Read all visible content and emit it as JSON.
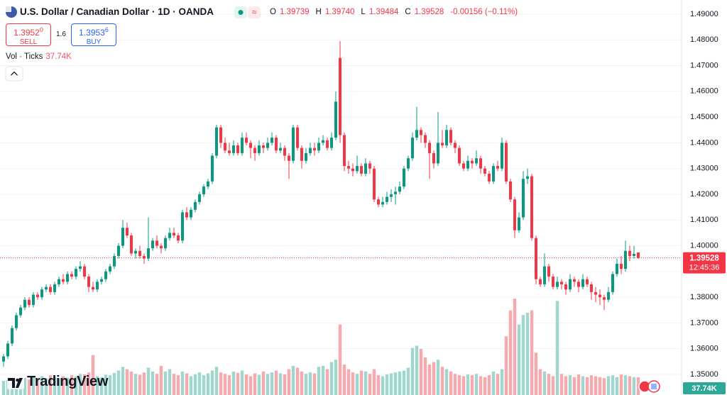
{
  "chart_data": {
    "type": "candlestick",
    "title": "U.S. Dollar / Canadian Dollar · 1D · OANDA",
    "ohlc_header": [
      {
        "label": "O",
        "value": "1.39739"
      },
      {
        "label": "H",
        "value": "1.39740"
      },
      {
        "label": "L",
        "value": "1.39484"
      },
      {
        "label": "C",
        "value": "1.39528"
      }
    ],
    "change_label": "-0.00156 (−0.11%)",
    "sell": {
      "price": "1.3952",
      "pip": "0",
      "label": "SELL"
    },
    "buy": {
      "price": "1.3953",
      "pip": "6",
      "label": "BUY"
    },
    "spread": "1.6",
    "volume_title": "Vol · Ticks",
    "vol_last_label": "37.74K",
    "countdown": "12:45:36",
    "logo": "TradingView",
    "up_color": "#089981",
    "down_color": "#f23645",
    "volume_up_color": "#9fd6cd",
    "volume_down_color": "#f8a9ae",
    "ylim": [
      1.342,
      1.4955
    ],
    "vol_ylim": [
      0,
      840000
    ],
    "grid": true,
    "yticks": [
      {
        "value": 1.35,
        "label": "1.35000"
      },
      {
        "value": 1.36,
        "label": "1.36000"
      },
      {
        "value": 1.37,
        "label": "1.37000"
      },
      {
        "value": 1.38,
        "label": "1.38000"
      },
      {
        "value": 1.39,
        "label": "1.39000"
      },
      {
        "value": 1.4,
        "label": "1.40000"
      },
      {
        "value": 1.41,
        "label": "1.41000"
      },
      {
        "value": 1.42,
        "label": "1.42000"
      },
      {
        "value": 1.43,
        "label": "1.43000"
      },
      {
        "value": 1.44,
        "label": "1.44000"
      },
      {
        "value": 1.45,
        "label": "1.45000"
      },
      {
        "value": 1.46,
        "label": "1.46000"
      },
      {
        "value": 1.47,
        "label": "1.47000"
      },
      {
        "value": 1.48,
        "label": "1.48000"
      },
      {
        "value": 1.49,
        "label": "1.49000"
      }
    ],
    "candles": [
      [
        1.355,
        1.358,
        1.353,
        1.357
      ],
      [
        1.357,
        1.363,
        1.356,
        1.362
      ],
      [
        1.362,
        1.369,
        1.361,
        1.368
      ],
      [
        1.368,
        1.374,
        1.367,
        1.373
      ],
      [
        1.373,
        1.377,
        1.372,
        1.376
      ],
      [
        1.376,
        1.38,
        1.375,
        1.379
      ],
      [
        1.379,
        1.38,
        1.376,
        1.377
      ],
      [
        1.377,
        1.382,
        1.376,
        1.381
      ],
      [
        1.381,
        1.382,
        1.379,
        1.38
      ],
      [
        1.38,
        1.384,
        1.379,
        1.383
      ],
      [
        1.383,
        1.385,
        1.382,
        1.384
      ],
      [
        1.384,
        1.385,
        1.381,
        1.382
      ],
      [
        1.382,
        1.386,
        1.381,
        1.385
      ],
      [
        1.385,
        1.388,
        1.384,
        1.387
      ],
      [
        1.387,
        1.389,
        1.385,
        1.386
      ],
      [
        1.386,
        1.39,
        1.385,
        1.389
      ],
      [
        1.389,
        1.39,
        1.387,
        1.388
      ],
      [
        1.388,
        1.392,
        1.387,
        1.391
      ],
      [
        1.391,
        1.394,
        1.39,
        1.392
      ],
      [
        1.392,
        1.393,
        1.387,
        1.388
      ],
      [
        1.388,
        1.389,
        1.382,
        1.384
      ],
      [
        1.384,
        1.386,
        1.382,
        1.383
      ],
      [
        1.383,
        1.387,
        1.382,
        1.386
      ],
      [
        1.386,
        1.388,
        1.385,
        1.387
      ],
      [
        1.387,
        1.391,
        1.386,
        1.39
      ],
      [
        1.39,
        1.393,
        1.389,
        1.392
      ],
      [
        1.392,
        1.397,
        1.391,
        1.396
      ],
      [
        1.396,
        1.401,
        1.395,
        1.4
      ],
      [
        1.4,
        1.41,
        1.399,
        1.407
      ],
      [
        1.407,
        1.409,
        1.403,
        1.404
      ],
      [
        1.404,
        1.405,
        1.396,
        1.397
      ],
      [
        1.397,
        1.399,
        1.395,
        1.398
      ],
      [
        1.398,
        1.4,
        1.395,
        1.396
      ],
      [
        1.396,
        1.397,
        1.393,
        1.395
      ],
      [
        1.395,
        1.411,
        1.394,
        1.399
      ],
      [
        1.399,
        1.403,
        1.398,
        1.402
      ],
      [
        1.402,
        1.404,
        1.399,
        1.4
      ],
      [
        1.4,
        1.401,
        1.397,
        1.399
      ],
      [
        1.399,
        1.404,
        1.398,
        1.403
      ],
      [
        1.403,
        1.407,
        1.402,
        1.405
      ],
      [
        1.405,
        1.407,
        1.403,
        1.404
      ],
      [
        1.404,
        1.405,
        1.401,
        1.402
      ],
      [
        1.402,
        1.414,
        1.401,
        1.413
      ],
      [
        1.413,
        1.415,
        1.41,
        1.411
      ],
      [
        1.411,
        1.415,
        1.41,
        1.414
      ],
      [
        1.414,
        1.418,
        1.413,
        1.417
      ],
      [
        1.417,
        1.421,
        1.416,
        1.42
      ],
      [
        1.42,
        1.424,
        1.419,
        1.423
      ],
      [
        1.423,
        1.426,
        1.422,
        1.425
      ],
      [
        1.425,
        1.436,
        1.424,
        1.435
      ],
      [
        1.435,
        1.447,
        1.434,
        1.446
      ],
      [
        1.446,
        1.447,
        1.438,
        1.44
      ],
      [
        1.44,
        1.442,
        1.436,
        1.437
      ],
      [
        1.437,
        1.44,
        1.435,
        1.436
      ],
      [
        1.436,
        1.441,
        1.435,
        1.439
      ],
      [
        1.439,
        1.44,
        1.435,
        1.436
      ],
      [
        1.436,
        1.444,
        1.435,
        1.442
      ],
      [
        1.442,
        1.444,
        1.439,
        1.44
      ],
      [
        1.44,
        1.441,
        1.434,
        1.438
      ],
      [
        1.438,
        1.439,
        1.433,
        1.436
      ],
      [
        1.436,
        1.441,
        1.435,
        1.439
      ],
      [
        1.439,
        1.44,
        1.436,
        1.438
      ],
      [
        1.438,
        1.442,
        1.437,
        1.44
      ],
      [
        1.44,
        1.444,
        1.439,
        1.442
      ],
      [
        1.442,
        1.443,
        1.436,
        1.437
      ],
      [
        1.437,
        1.44,
        1.436,
        1.438
      ],
      [
        1.438,
        1.439,
        1.433,
        1.435
      ],
      [
        1.435,
        1.436,
        1.426,
        1.433
      ],
      [
        1.433,
        1.447,
        1.432,
        1.446
      ],
      [
        1.446,
        1.447,
        1.437,
        1.438
      ],
      [
        1.438,
        1.439,
        1.43,
        1.433
      ],
      [
        1.433,
        1.438,
        1.432,
        1.436
      ],
      [
        1.436,
        1.44,
        1.435,
        1.438
      ],
      [
        1.438,
        1.44,
        1.435,
        1.437
      ],
      [
        1.437,
        1.442,
        1.436,
        1.44
      ],
      [
        1.44,
        1.443,
        1.439,
        1.441
      ],
      [
        1.441,
        1.442,
        1.437,
        1.438
      ],
      [
        1.438,
        1.444,
        1.437,
        1.442
      ],
      [
        1.442,
        1.46,
        1.441,
        1.456
      ],
      [
        1.473,
        1.4795,
        1.44,
        1.443
      ],
      [
        1.443,
        1.444,
        1.429,
        1.431
      ],
      [
        1.431,
        1.433,
        1.428,
        1.43
      ],
      [
        1.43,
        1.432,
        1.427,
        1.429
      ],
      [
        1.429,
        1.435,
        1.428,
        1.431
      ],
      [
        1.431,
        1.432,
        1.427,
        1.428
      ],
      [
        1.428,
        1.434,
        1.427,
        1.432
      ],
      [
        1.432,
        1.433,
        1.428,
        1.43
      ],
      [
        1.43,
        1.431,
        1.417,
        1.418
      ],
      [
        1.418,
        1.419,
        1.415,
        1.416
      ],
      [
        1.416,
        1.419,
        1.415,
        1.417
      ],
      [
        1.417,
        1.421,
        1.416,
        1.419
      ],
      [
        1.419,
        1.422,
        1.417,
        1.42
      ],
      [
        1.42,
        1.423,
        1.416,
        1.421
      ],
      [
        1.421,
        1.425,
        1.42,
        1.423
      ],
      [
        1.423,
        1.431,
        1.422,
        1.43
      ],
      [
        1.43,
        1.435,
        1.429,
        1.434
      ],
      [
        1.434,
        1.444,
        1.433,
        1.442
      ],
      [
        1.442,
        1.454,
        1.441,
        1.445
      ],
      [
        1.445,
        1.446,
        1.44,
        1.443
      ],
      [
        1.443,
        1.444,
        1.438,
        1.44
      ],
      [
        1.44,
        1.441,
        1.426,
        1.436
      ],
      [
        1.436,
        1.437,
        1.43,
        1.432
      ],
      [
        1.432,
        1.452,
        1.431,
        1.44
      ],
      [
        1.44,
        1.445,
        1.438,
        1.439
      ],
      [
        1.439,
        1.447,
        1.438,
        1.445
      ],
      [
        1.445,
        1.446,
        1.439,
        1.44
      ],
      [
        1.44,
        1.441,
        1.436,
        1.438
      ],
      [
        1.438,
        1.439,
        1.431,
        1.432
      ],
      [
        1.432,
        1.433,
        1.429,
        1.43
      ],
      [
        1.43,
        1.435,
        1.429,
        1.433
      ],
      [
        1.433,
        1.434,
        1.43,
        1.432
      ],
      [
        1.432,
        1.437,
        1.431,
        1.434
      ],
      [
        1.434,
        1.435,
        1.428,
        1.43
      ],
      [
        1.43,
        1.431,
        1.427,
        1.428
      ],
      [
        1.428,
        1.429,
        1.424,
        1.425
      ],
      [
        1.425,
        1.432,
        1.424,
        1.431
      ],
      [
        1.431,
        1.433,
        1.429,
        1.43
      ],
      [
        1.43,
        1.442,
        1.429,
        1.44
      ],
      [
        1.44,
        1.441,
        1.424,
        1.425
      ],
      [
        1.425,
        1.426,
        1.417,
        1.418
      ],
      [
        1.418,
        1.419,
        1.403,
        1.406
      ],
      [
        1.406,
        1.413,
        1.405,
        1.411
      ],
      [
        1.411,
        1.429,
        1.41,
        1.426
      ],
      [
        1.426,
        1.43,
        1.424,
        1.427
      ],
      [
        1.427,
        1.428,
        1.402,
        1.403
      ],
      [
        1.403,
        1.404,
        1.385,
        1.387
      ],
      [
        1.387,
        1.388,
        1.384,
        1.385
      ],
      [
        1.385,
        1.397,
        1.384,
        1.392
      ],
      [
        1.392,
        1.393,
        1.386,
        1.388
      ],
      [
        1.388,
        1.389,
        1.383,
        1.384
      ],
      [
        1.384,
        1.388,
        1.383,
        1.386
      ],
      [
        1.386,
        1.387,
        1.383,
        1.385
      ],
      [
        1.385,
        1.386,
        1.381,
        1.383
      ],
      [
        1.383,
        1.389,
        1.382,
        1.387
      ],
      [
        1.387,
        1.388,
        1.384,
        1.386
      ],
      [
        1.386,
        1.387,
        1.382,
        1.384
      ],
      [
        1.384,
        1.389,
        1.383,
        1.387
      ],
      [
        1.387,
        1.388,
        1.384,
        1.385
      ],
      [
        1.385,
        1.386,
        1.379,
        1.382
      ],
      [
        1.382,
        1.384,
        1.378,
        1.381
      ],
      [
        1.381,
        1.383,
        1.377,
        1.38
      ],
      [
        1.38,
        1.381,
        1.375,
        1.379
      ],
      [
        1.379,
        1.384,
        1.378,
        1.382
      ],
      [
        1.382,
        1.39,
        1.381,
        1.389
      ],
      [
        1.389,
        1.395,
        1.388,
        1.393
      ],
      [
        1.393,
        1.396,
        1.389,
        1.391
      ],
      [
        1.391,
        1.402,
        1.39,
        1.398
      ],
      [
        1.398,
        1.4,
        1.394,
        1.396
      ],
      [
        1.396,
        1.4,
        1.395,
        1.39684
      ],
      [
        1.39739,
        1.3974,
        1.39484,
        1.39528
      ]
    ],
    "volume": [
      30000,
      32000,
      28000,
      35000,
      30000,
      36000,
      33000,
      38000,
      31000,
      40000,
      36000,
      42000,
      38000,
      35000,
      40000,
      37000,
      42000,
      39000,
      45000,
      44000,
      48000,
      85000,
      40000,
      38000,
      43000,
      42000,
      47000,
      52000,
      60000,
      55000,
      50000,
      45000,
      43000,
      48000,
      58000,
      50000,
      45000,
      62000,
      50000,
      55000,
      45000,
      42000,
      50000,
      46000,
      40000,
      44000,
      48000,
      42000,
      46000,
      52000,
      60000,
      48000,
      45000,
      42000,
      50000,
      47000,
      52000,
      44000,
      40000,
      46000,
      43000,
      50000,
      45000,
      48000,
      52000,
      46000,
      44000,
      55000,
      62000,
      58000,
      50000,
      45000,
      48000,
      46000,
      60000,
      62000,
      55000,
      70000,
      75000,
      150000,
      65000,
      55000,
      48000,
      45000,
      52000,
      50000,
      45000,
      55000,
      42000,
      40000,
      44000,
      46000,
      48000,
      50000,
      52000,
      58000,
      100000,
      105000,
      98000,
      80000,
      65000,
      70000,
      75000,
      60000,
      55000,
      50000,
      45000,
      42000,
      40000,
      44000,
      42000,
      45000,
      40000,
      38000,
      42000,
      50000,
      45000,
      55000,
      125000,
      180000,
      205000,
      150000,
      170000,
      175000,
      180000,
      90000,
      55000,
      50000,
      45000,
      40000,
      200000,
      45000,
      40000,
      42000,
      38000,
      44000,
      40000,
      38000,
      42000,
      40000,
      38000,
      36000,
      40000,
      42000,
      38000,
      44000,
      42000,
      40000,
      38000,
      37740
    ]
  }
}
